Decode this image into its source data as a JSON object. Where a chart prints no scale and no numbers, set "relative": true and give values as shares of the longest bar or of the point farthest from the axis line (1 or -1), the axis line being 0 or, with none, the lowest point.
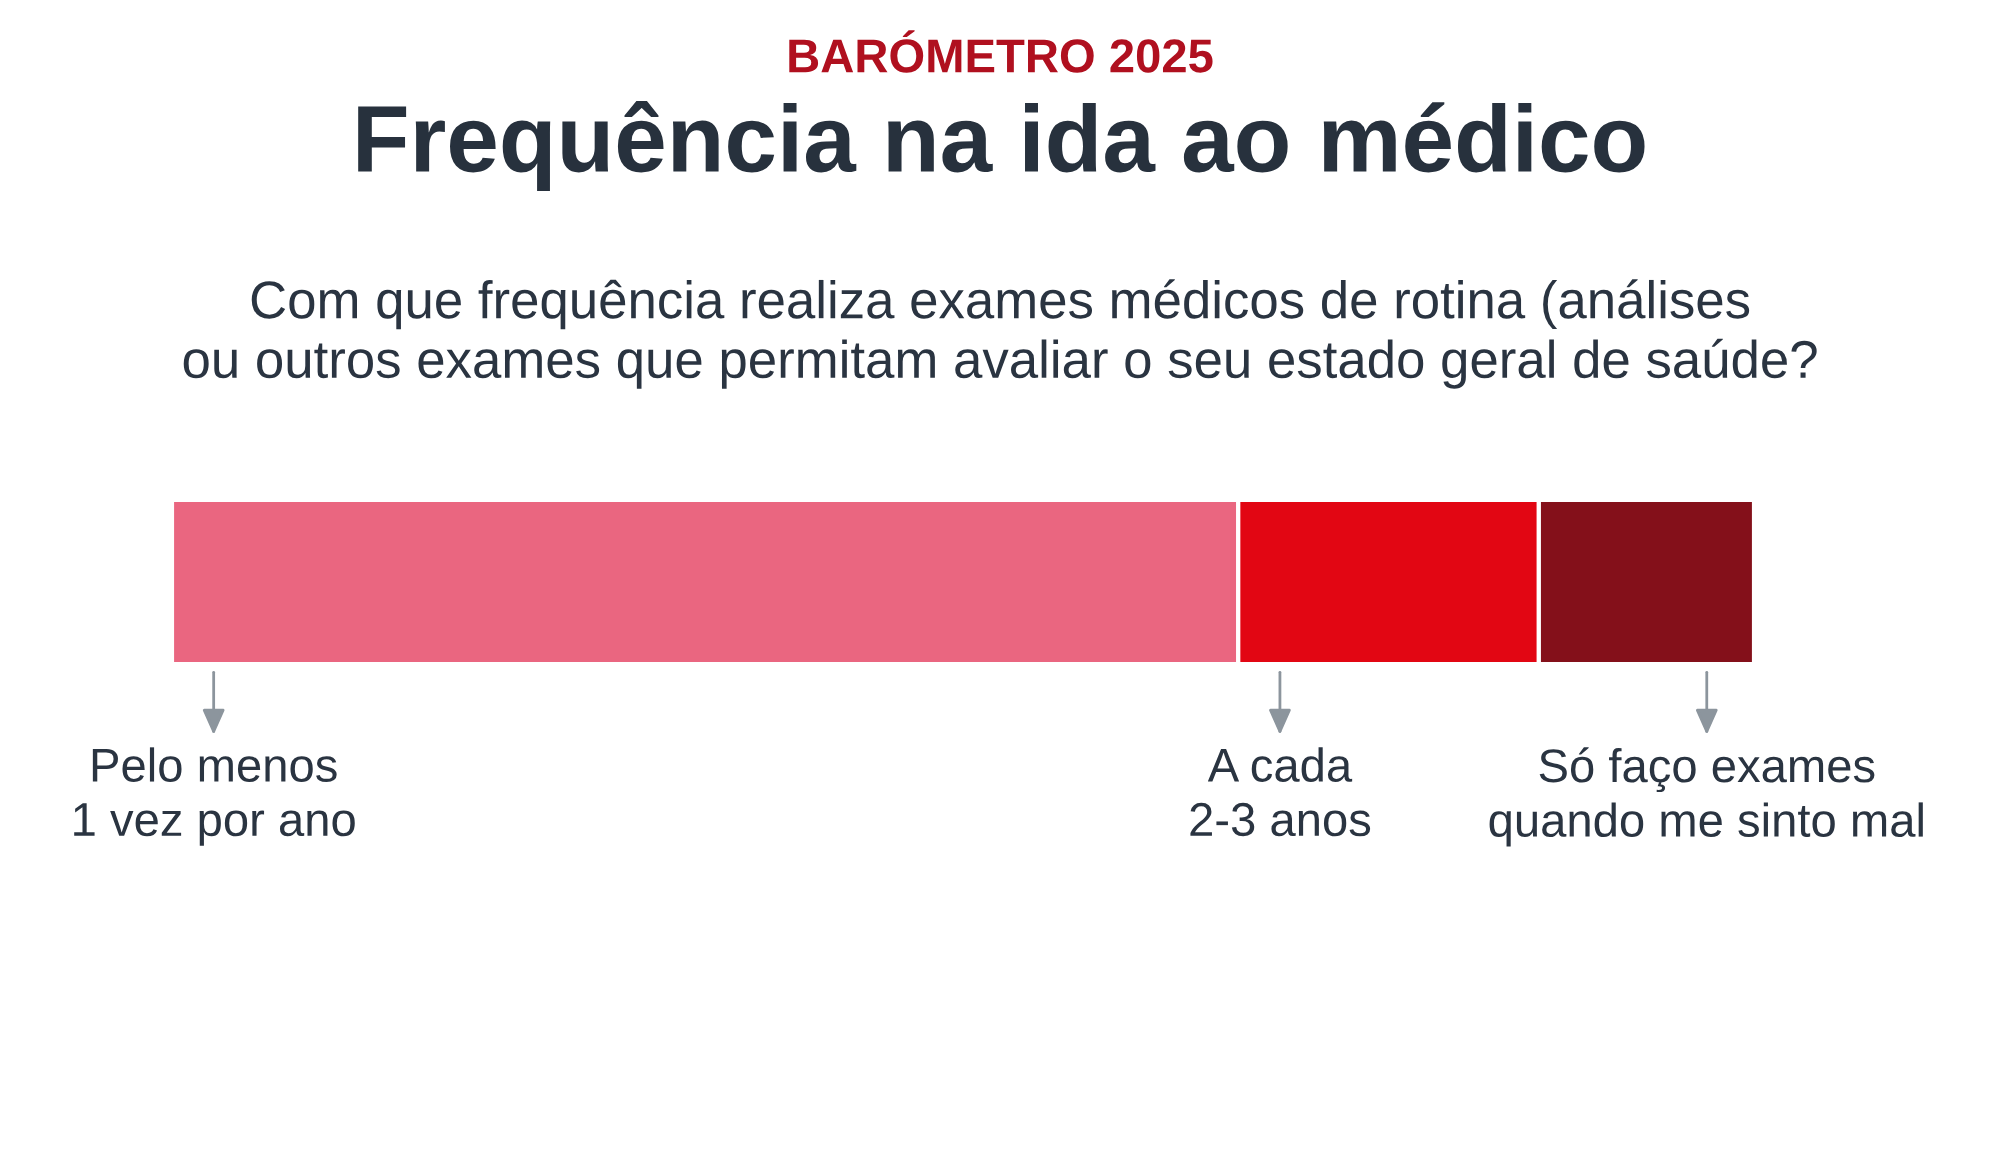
{
  "chart_data": {
    "type": "bar",
    "orientation": "horizontal",
    "stacked": true,
    "relative": true,
    "title": "Frequência na ida ao médico",
    "subtitle": "Com que frequência realiza exames médicos de rotina (análises\nou outros exames que permitam avaliar o seu estado geral de saúde?",
    "annotations": [
      "BARÓMETRO 2025"
    ],
    "categories": [
      null
    ],
    "series": [
      {
        "name": "Pelo menos\n1 vez por ano",
        "color": "#ea6680",
        "values": [
          0.674
        ]
      },
      {
        "name": "A cada\n2-3 anos",
        "color": "#e20613",
        "values": [
          0.19
        ]
      },
      {
        "name": "Só faço exames\nquando me sinto mal",
        "color": "#84101a",
        "values": [
          0.136
        ]
      }
    ]
  }
}
